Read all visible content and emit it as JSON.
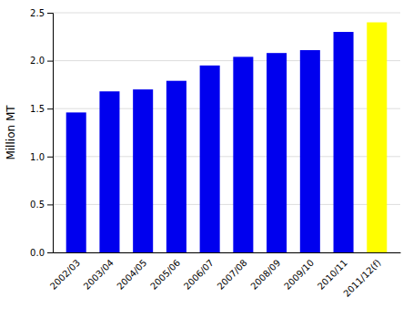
{
  "chart_data": {
    "type": "bar",
    "categories": [
      "2002/03",
      "2003/04",
      "2004/05",
      "2005/06",
      "2006/07",
      "2007/08",
      "2008/09",
      "2009/10",
      "2010/11",
      "2011/12(f)"
    ],
    "values": [
      1.46,
      1.68,
      1.7,
      1.79,
      1.95,
      2.04,
      2.08,
      2.11,
      2.3,
      2.4
    ],
    "colors": [
      "#0000ee",
      "#0000ee",
      "#0000ee",
      "#0000ee",
      "#0000ee",
      "#0000ee",
      "#0000ee",
      "#0000ee",
      "#0000ee",
      "#ffff00"
    ],
    "ylabel": "Million MT",
    "ylim": [
      0,
      2.5
    ],
    "yticks": [
      {
        "value": 0.0,
        "label": "0.0"
      },
      0.5,
      {
        "value": 1.0,
        "label": "1.0"
      },
      1.5,
      {
        "value": 2.0,
        "label": "2.0"
      },
      2.5
    ],
    "grid": true
  }
}
